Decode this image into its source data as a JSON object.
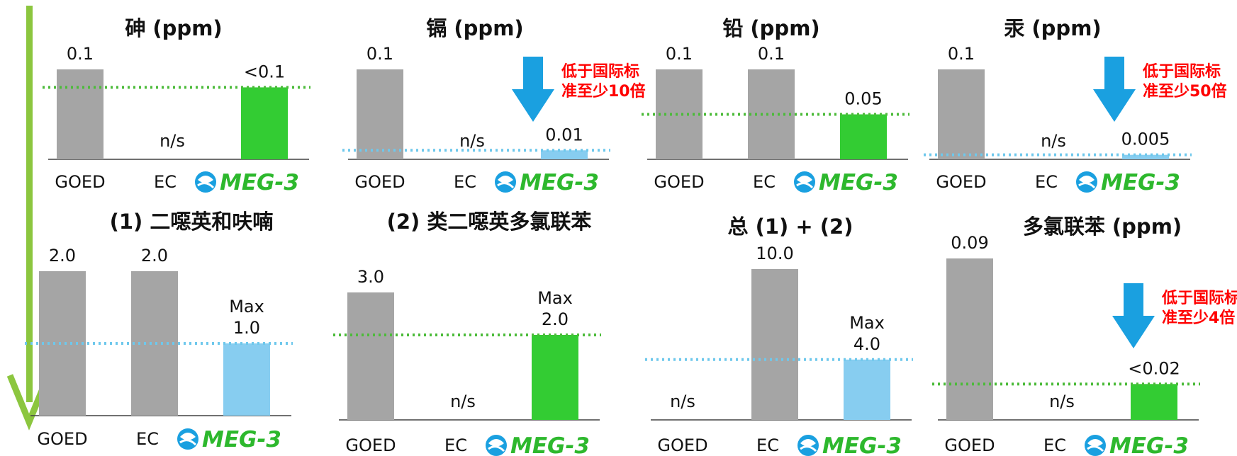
{
  "colors": {
    "goed": "#a5a5a5",
    "meg3_green": "#33cc33",
    "meg3_lightblue": "#87cdf0",
    "green_line": "#4cbb3a",
    "blue_line": "#6ec8ec",
    "arrow_blue": "#1aa0e0",
    "side_arrow": "#8cc63f",
    "note_red": "#ff0000"
  },
  "brand": {
    "name": "MEG-3",
    "icon": "meg3-fish-logo-icon"
  },
  "chart_data": [
    {
      "type": "bar",
      "title": "砷 (ppm)",
      "categories": [
        "GOED",
        "EC",
        "MEG-3"
      ],
      "values": [
        0.1,
        null,
        0.08
      ],
      "value_labels": [
        "0.1",
        "n/s",
        "<0.1"
      ],
      "bar_colors": [
        "#a5a5a5",
        null,
        "#33cc33"
      ],
      "reference_line": {
        "value": 0.08,
        "color": "green"
      },
      "ylim": [
        0,
        0.1
      ]
    },
    {
      "type": "bar",
      "title": "镉 (ppm)",
      "categories": [
        "GOED",
        "EC",
        "MEG-3"
      ],
      "values": [
        0.1,
        null,
        0.01
      ],
      "value_labels": [
        "0.1",
        "n/s",
        "0.01"
      ],
      "bar_colors": [
        "#a5a5a5",
        null,
        "#87cdf0"
      ],
      "reference_line": {
        "value": 0.01,
        "color": "light-blue"
      },
      "annotation": {
        "lines": [
          "低于国际标",
          "准至少10倍"
        ],
        "arrow": "down"
      },
      "ylim": [
        0,
        0.1
      ]
    },
    {
      "type": "bar",
      "title": "铅 (ppm)",
      "categories": [
        "GOED",
        "EC",
        "MEG-3"
      ],
      "values": [
        0.1,
        0.1,
        0.05
      ],
      "value_labels": [
        "0.1",
        "0.1",
        "0.05"
      ],
      "bar_colors": [
        "#a5a5a5",
        "#a5a5a5",
        "#33cc33"
      ],
      "reference_line": {
        "value": 0.05,
        "color": "green"
      },
      "ylim": [
        0,
        0.1
      ]
    },
    {
      "type": "bar",
      "title": "汞 (ppm)",
      "categories": [
        "GOED",
        "EC",
        "MEG-3"
      ],
      "values": [
        0.1,
        null,
        0.005
      ],
      "value_labels": [
        "0.1",
        "n/s",
        "0.005"
      ],
      "bar_colors": [
        "#a5a5a5",
        null,
        "#87cdf0"
      ],
      "reference_line": {
        "value": 0.005,
        "color": "light-blue"
      },
      "annotation": {
        "lines": [
          "低于国际标",
          "准至少50倍"
        ],
        "arrow": "down"
      },
      "ylim": [
        0,
        0.1
      ]
    },
    {
      "type": "bar",
      "title": "(1) 二噁英和呋喃",
      "categories": [
        "GOED",
        "EC",
        "MEG-3"
      ],
      "values": [
        2.0,
        2.0,
        1.0
      ],
      "value_labels": [
        "2.0",
        "2.0",
        "Max\n1.0"
      ],
      "bar_colors": [
        "#a5a5a5",
        "#a5a5a5",
        "#87cdf0"
      ],
      "reference_line": {
        "value": 1.0,
        "color": "light-blue"
      },
      "ylim": [
        0,
        2.0
      ]
    },
    {
      "type": "bar",
      "title": "(2) 类二噁英多氯联苯",
      "categories": [
        "GOED",
        "EC",
        "MEG-3"
      ],
      "values": [
        3.0,
        null,
        2.0
      ],
      "value_labels": [
        "3.0",
        "n/s",
        "Max\n2.0"
      ],
      "bar_colors": [
        "#a5a5a5",
        null,
        "#33cc33"
      ],
      "reference_line": {
        "value": 2.0,
        "color": "green"
      },
      "ylim": [
        0,
        3.0
      ]
    },
    {
      "type": "bar",
      "title": "总 (1) + (2)",
      "categories": [
        "GOED",
        "EC",
        "MEG-3"
      ],
      "values": [
        null,
        10.0,
        4.0
      ],
      "value_labels": [
        "n/s",
        "10.0",
        "Max\n4.0"
      ],
      "bar_colors": [
        null,
        "#a5a5a5",
        "#87cdf0"
      ],
      "reference_line": {
        "value": 4.0,
        "color": "light-blue"
      },
      "ylim": [
        0,
        10.0
      ]
    },
    {
      "type": "bar",
      "title": "多氯联苯 (ppm)",
      "categories": [
        "GOED",
        "EC",
        "MEG-3"
      ],
      "values": [
        0.09,
        null,
        0.02
      ],
      "value_labels": [
        "0.09",
        "n/s",
        "<0.02"
      ],
      "bar_colors": [
        "#a5a5a5",
        null,
        "#33cc33"
      ],
      "reference_line": {
        "value": 0.02,
        "color": "green"
      },
      "annotation": {
        "lines": [
          "低于国际标",
          "准至少4倍"
        ],
        "arrow": "down"
      },
      "ylim": [
        0,
        0.09
      ]
    }
  ]
}
